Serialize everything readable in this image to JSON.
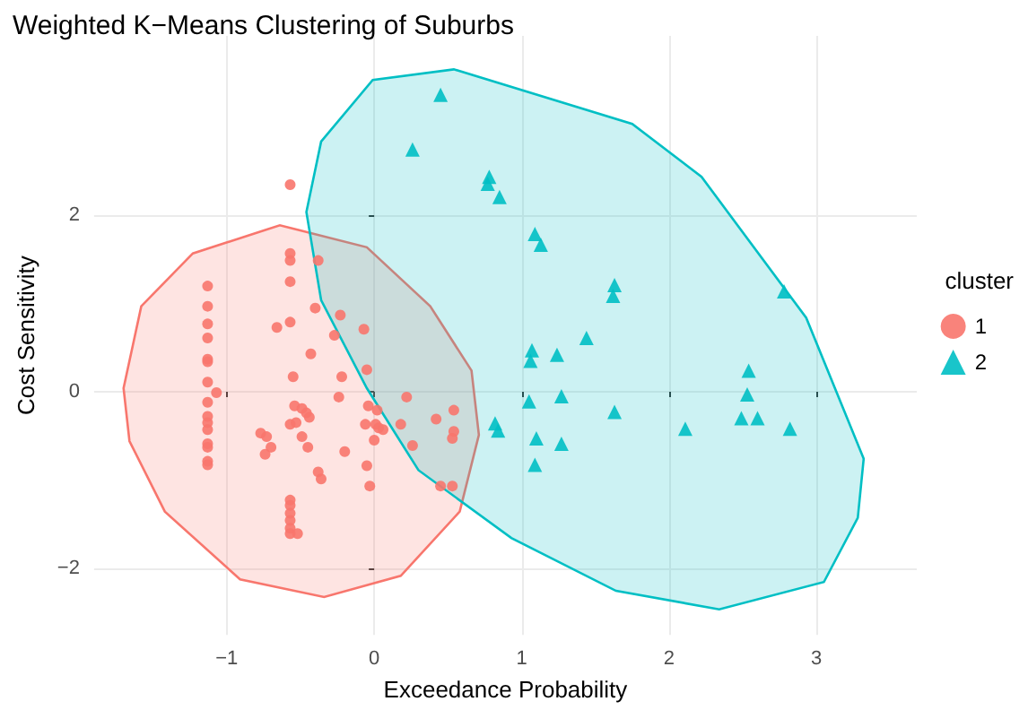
{
  "chart_data": {
    "type": "scatter",
    "title": "Weighted K−Means Clustering of Suburbs",
    "xlabel": "Exceedance Probability",
    "ylabel": "Cost Sensitivity",
    "legend_title": "cluster",
    "legend": "right",
    "grid": true,
    "xlim": [
      -1.9,
      3.68
    ],
    "ylim": [
      -2.76,
      4.04
    ],
    "xticks": [
      -1,
      0,
      1,
      2,
      3
    ],
    "yticks": [
      -2,
      0,
      2
    ],
    "series": [
      {
        "type": "area",
        "color": "#f8766d",
        "x": [
          -1.7,
          -1.58,
          -1.23,
          -0.64,
          -0.05,
          0.38,
          0.66,
          0.71,
          0.58,
          0.18,
          -0.34,
          -0.91,
          -1.42,
          -1.66,
          -1.7
        ],
        "values": [
          0.04,
          0.97,
          1.57,
          1.89,
          1.64,
          0.97,
          0.24,
          -0.49,
          -1.36,
          -2.09,
          -2.33,
          -2.13,
          -1.36,
          -0.56,
          0.04
        ]
      },
      {
        "type": "area",
        "color": "#00bfc4",
        "x": [
          -0.46,
          -0.36,
          -0.01,
          0.54,
          1.75,
          2.22,
          2.93,
          3.32,
          3.28,
          3.05,
          2.34,
          1.64,
          0.93,
          0.3,
          -0.05,
          -0.36,
          -0.46
        ],
        "values": [
          2.04,
          2.84,
          3.54,
          3.66,
          3.04,
          2.44,
          0.84,
          -0.76,
          -1.43,
          -2.16,
          -2.47,
          -2.26,
          -1.66,
          -0.89,
          0.04,
          1.04,
          2.04
        ]
      },
      {
        "name": "1",
        "color": "#f8766d",
        "marker": "circle",
        "x": [
          -0.57,
          -0.57,
          -0.57,
          -0.57,
          -0.57,
          -1.13,
          -1.13,
          -1.13,
          -1.13,
          -1.13,
          -1.13,
          -1.13,
          -1.13,
          -1.13,
          -1.13,
          -1.13,
          -1.13,
          -1.13,
          -1.13,
          -1.13,
          -1.07,
          -0.57,
          -0.57,
          -0.57,
          -0.57,
          -0.57,
          -0.57,
          -0.52,
          -0.38,
          -0.4,
          -0.23,
          -0.07,
          -0.66,
          -0.27,
          -0.43,
          -0.05,
          -0.55,
          -0.22,
          -0.24,
          0.22,
          -0.54,
          -0.49,
          -0.46,
          -0.44,
          -0.57,
          -0.53,
          -0.77,
          -0.73,
          -0.7,
          -0.74,
          -0.49,
          -0.45,
          -0.04,
          0.02,
          -0.06,
          0.01,
          0.03,
          0.06,
          0.0,
          -0.2,
          0.18,
          0.26,
          0.42,
          0.54,
          0.54,
          0.53,
          -0.05,
          -0.38,
          -0.36,
          -0.03,
          0.45,
          0.53
        ],
        "values": [
          2.35,
          1.57,
          1.49,
          1.25,
          0.79,
          1.2,
          0.97,
          0.77,
          0.61,
          0.37,
          0.34,
          0.11,
          -0.12,
          -0.28,
          -0.35,
          -0.43,
          -0.59,
          -0.63,
          -0.79,
          -0.83,
          -0.01,
          -1.23,
          -1.29,
          -1.38,
          -1.46,
          -1.55,
          -1.61,
          -1.61,
          1.49,
          0.95,
          0.87,
          0.71,
          0.73,
          0.64,
          0.43,
          0.25,
          0.17,
          0.17,
          -0.06,
          -0.06,
          -0.16,
          -0.19,
          -0.24,
          -0.29,
          -0.37,
          -0.35,
          -0.47,
          -0.51,
          -0.63,
          -0.71,
          -0.51,
          -0.63,
          -0.16,
          -0.21,
          -0.37,
          -0.37,
          -0.41,
          -0.43,
          -0.55,
          -0.68,
          -0.37,
          -0.61,
          -0.31,
          -0.21,
          -0.45,
          -0.53,
          -0.84,
          -0.91,
          -0.99,
          -1.07,
          -1.07,
          -1.07
        ]
      },
      {
        "name": "2",
        "color": "#00bfc4",
        "marker": "triangle",
        "x": [
          0.45,
          0.26,
          0.78,
          0.77,
          0.85,
          1.09,
          1.13,
          1.63,
          1.62,
          2.78,
          1.44,
          1.07,
          1.06,
          1.24,
          2.54,
          2.53,
          1.05,
          1.27,
          1.63,
          2.11,
          2.49,
          2.6,
          2.82,
          0.82,
          0.84,
          1.1,
          1.27,
          1.09
        ],
        "values": [
          3.37,
          2.75,
          2.44,
          2.36,
          2.21,
          1.79,
          1.67,
          1.21,
          1.09,
          1.14,
          0.61,
          0.47,
          0.35,
          0.42,
          0.24,
          -0.03,
          -0.11,
          -0.05,
          -0.23,
          -0.42,
          -0.3,
          -0.3,
          -0.42,
          -0.36,
          -0.44,
          -0.53,
          -0.59,
          -0.83
        ]
      }
    ]
  }
}
